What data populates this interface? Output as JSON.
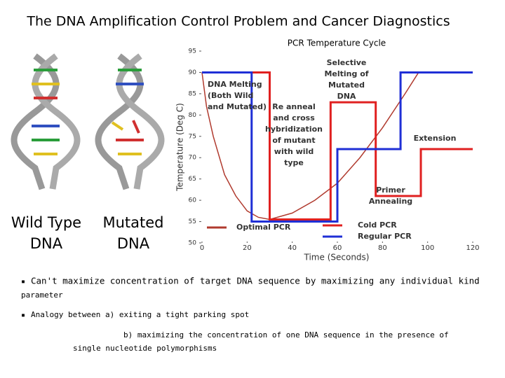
{
  "slide": {
    "title": "The DNA Amplification Control Problem and Cancer Diagnostics",
    "dna_labels": [
      [
        "Wild Type",
        "DNA"
      ],
      [
        "Mutated",
        "DNA"
      ]
    ],
    "bullets": [
      {
        "lines": [
          "Can't maximize concentration of target DNA sequence by maximizing any individual kind",
          "parameter"
        ]
      },
      {
        "lines": [
          "Analogy between  a) exiting a tight parking spot",
          "b) maximizing the concentration of one DNA sequence in the presence of",
          "single nucleotide polymorphisms"
        ]
      }
    ]
  },
  "chart_data": {
    "type": "line",
    "title": "PCR Temperature Cycle",
    "x_label": "Time (Seconds)",
    "y_label": "Temperature (Deg C)",
    "xlim": [
      0,
      120
    ],
    "xticks": [
      0,
      20,
      40,
      60,
      80,
      100,
      120
    ],
    "ylim": [
      50,
      95
    ],
    "yticks": [
      50,
      55,
      60,
      65,
      70,
      75,
      80,
      85,
      90,
      95
    ],
    "series": [
      {
        "name": "Optimal PCR",
        "color": "#b03a2e",
        "x": [
          0,
          2,
          5,
          10,
          15,
          20,
          25,
          30,
          40,
          50,
          60,
          70,
          80,
          90,
          96
        ],
        "values": [
          90,
          82,
          75,
          66,
          61,
          57.5,
          56,
          55.5,
          57,
          60,
          64,
          70,
          77,
          85,
          90
        ]
      },
      {
        "name": "Cold PCR",
        "color": "#e02020",
        "x": [
          0,
          30,
          30,
          57,
          57,
          77,
          77,
          97,
          97,
          120
        ],
        "values": [
          90,
          90,
          55.5,
          55.5,
          83,
          83,
          61,
          61,
          72,
          72
        ]
      },
      {
        "name": "Regular PCR",
        "color": "#1f2fd6",
        "x": [
          0,
          22,
          22,
          60,
          60,
          88,
          88,
          120
        ],
        "values": [
          90,
          90,
          55,
          55,
          72,
          72,
          90,
          90
        ]
      }
    ],
    "annotations": [
      {
        "lines": [
          "DNA Melting",
          "(Both Wild",
          "and Mutated)"
        ]
      },
      {
        "lines": [
          "Re anneal",
          "and cross",
          "hybridization",
          "of mutant",
          "with wild",
          "type"
        ]
      },
      {
        "lines": [
          "Selective",
          "Melting of",
          "Mutated",
          "DNA"
        ]
      },
      {
        "lines": [
          "Extension"
        ]
      },
      {
        "lines": [
          "Primer",
          "Annealing"
        ]
      }
    ]
  }
}
